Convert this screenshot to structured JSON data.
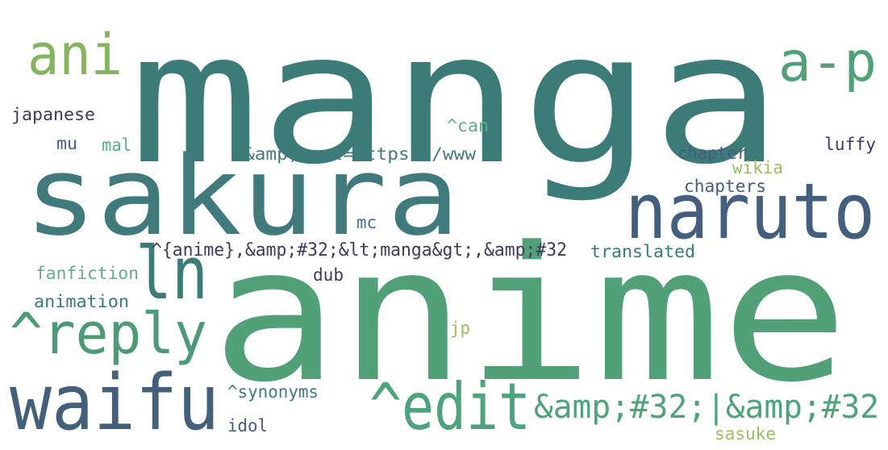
{
  "words": [
    {
      "text": "manga",
      "color": "#3b7b78"
    },
    {
      "text": "anime",
      "color": "#52a077"
    },
    {
      "text": "sakura",
      "color": "#417a7c"
    },
    {
      "text": "naruto",
      "color": "#445f7d"
    },
    {
      "text": "waifu",
      "color": "#435f7a"
    },
    {
      "text": "^edit",
      "color": "#4ea27c"
    },
    {
      "text": "^reply",
      "color": "#4d9a77"
    },
    {
      "text": "ani",
      "color": "#86b55f"
    },
    {
      "text": "a-p",
      "color": "#52a077"
    },
    {
      "text": "ln",
      "color": "#3b7b78"
    },
    {
      "text": "&amp;#32;|&amp;#32",
      "color": "#4ea27c"
    },
    {
      "text": "^{anime},&amp;#32;&lt;manga&gt;,&amp;#32",
      "color": "#3e3a5c"
    },
    {
      "text": "&amp;text=https://www",
      "color": "#437a80"
    },
    {
      "text": "japanese",
      "color": "#3e3a5c"
    },
    {
      "text": "^can",
      "color": "#5fae86"
    },
    {
      "text": "mu",
      "color": "#445f7d"
    },
    {
      "text": "mal",
      "color": "#5fae86"
    },
    {
      "text": "chapter",
      "color": "#445f7d"
    },
    {
      "text": "wikia",
      "color": "#9abf5f"
    },
    {
      "text": "luffy",
      "color": "#3e3a5c"
    },
    {
      "text": "chapters",
      "color": "#445f7d"
    },
    {
      "text": "mc",
      "color": "#4a6f86"
    },
    {
      "text": "translated",
      "color": "#3b7b78"
    },
    {
      "text": "fanfiction",
      "color": "#5fae86"
    },
    {
      "text": "dub",
      "color": "#3e3a5c"
    },
    {
      "text": "animation",
      "color": "#3b7b78"
    },
    {
      "text": "jp",
      "color": "#9abf5f"
    },
    {
      "text": "^synonyms",
      "color": "#437a80"
    },
    {
      "text": "idol",
      "color": "#445f7d"
    },
    {
      "text": "sasuke",
      "color": "#9abf5f"
    }
  ]
}
